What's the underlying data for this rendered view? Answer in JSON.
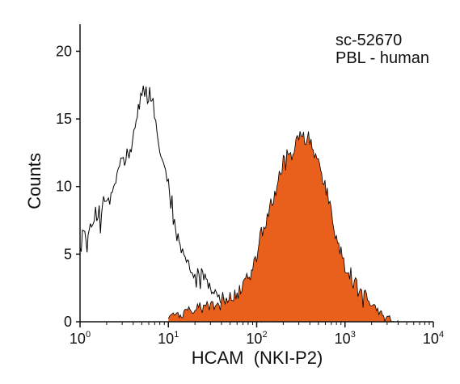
{
  "chart_data": {
    "type": "area",
    "xscale": "log",
    "xlim": [
      1,
      10000
    ],
    "ylim": [
      0,
      22
    ],
    "xlabel": "HCAM  (NKI-P2)",
    "ylabel": "Counts",
    "x_ticks": [
      {
        "value": 1,
        "base": "10",
        "exp": "0"
      },
      {
        "value": 10,
        "base": "10",
        "exp": "1"
      },
      {
        "value": 100,
        "base": "10",
        "exp": "2"
      },
      {
        "value": 1000,
        "base": "10",
        "exp": "3"
      },
      {
        "value": 10000,
        "base": "10",
        "exp": "4"
      }
    ],
    "y_ticks": [
      0,
      5,
      10,
      15,
      20
    ],
    "annotations": [
      "sc-52670",
      "PBL - human"
    ],
    "colors": {
      "control": "#000000",
      "stained": "#e8601c",
      "stained_edge": "#000000"
    },
    "series": [
      {
        "style": "outline",
        "x": [
          1.0,
          1.1,
          1.2,
          1.35,
          1.5,
          1.7,
          1.9,
          2.1,
          2.4,
          2.7,
          3.0,
          3.4,
          3.8,
          4.2,
          4.7,
          5.2,
          5.8,
          6.5,
          7.2,
          8.0,
          9.0,
          10.0,
          11.0,
          12.5,
          14.0,
          16.0,
          18.0,
          20.0,
          23.0,
          26.0,
          30.0,
          35.0,
          40.0,
          45.0,
          55.0,
          70.0,
          100.0,
          200.0
        ],
        "y": [
          5.5,
          7.5,
          6,
          7.8,
          8.5,
          7.5,
          8.8,
          8.2,
          9.5,
          10.5,
          11.5,
          12.5,
          13.5,
          15,
          16.5,
          17.8,
          17.2,
          16,
          14.5,
          12.5,
          10.5,
          9.5,
          8.5,
          7,
          6,
          5,
          4.2,
          3.6,
          3,
          2.5,
          2,
          1.6,
          1.3,
          1.1,
          0.8,
          0.5,
          0.3,
          0.1
        ]
      },
      {
        "style": "filled",
        "x": [
          10,
          15,
          20,
          25,
          30,
          40,
          50,
          60,
          70,
          80,
          90,
          100,
          120,
          140,
          160,
          180,
          200,
          220,
          250,
          280,
          300,
          330,
          360,
          400,
          450,
          500,
          560,
          630,
          700,
          800,
          900,
          1000,
          1200,
          1400,
          1600,
          1800,
          2000,
          2500,
          3000,
          4000
        ],
        "y": [
          0.3,
          0.6,
          0.8,
          1,
          1.2,
          1.6,
          2,
          2.6,
          3.2,
          3.8,
          4.5,
          5.3,
          6.5,
          7.8,
          9,
          10.2,
          11.4,
          12.2,
          13,
          13.8,
          14.5,
          14.2,
          13.8,
          13,
          12,
          11,
          10,
          9,
          8,
          6.8,
          5.6,
          4.5,
          3.5,
          2.5,
          1.9,
          1.3,
          0.9,
          0.5,
          0.3,
          0.1
        ]
      }
    ]
  }
}
